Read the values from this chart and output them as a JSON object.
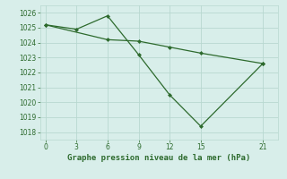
{
  "line1_x": [
    0,
    3,
    6,
    9,
    12,
    15,
    21
  ],
  "line1_y": [
    1025.2,
    1024.9,
    1025.8,
    1023.2,
    1020.5,
    1018.4,
    1022.6
  ],
  "line2_x": [
    0,
    6,
    9,
    12,
    15,
    21
  ],
  "line2_y": [
    1025.2,
    1024.2,
    1024.1,
    1023.7,
    1023.3,
    1022.6
  ],
  "line_color": "#2d6a2d",
  "bg_color": "#d8eeea",
  "grid_color": "#b8d8d0",
  "xlabel": "Graphe pression niveau de la mer (hPa)",
  "xticks": [
    0,
    3,
    6,
    9,
    12,
    15,
    21
  ],
  "yticks": [
    1018,
    1019,
    1020,
    1021,
    1022,
    1023,
    1024,
    1025,
    1026
  ],
  "ylim": [
    1017.5,
    1026.5
  ],
  "xlim": [
    -0.5,
    22.5
  ]
}
